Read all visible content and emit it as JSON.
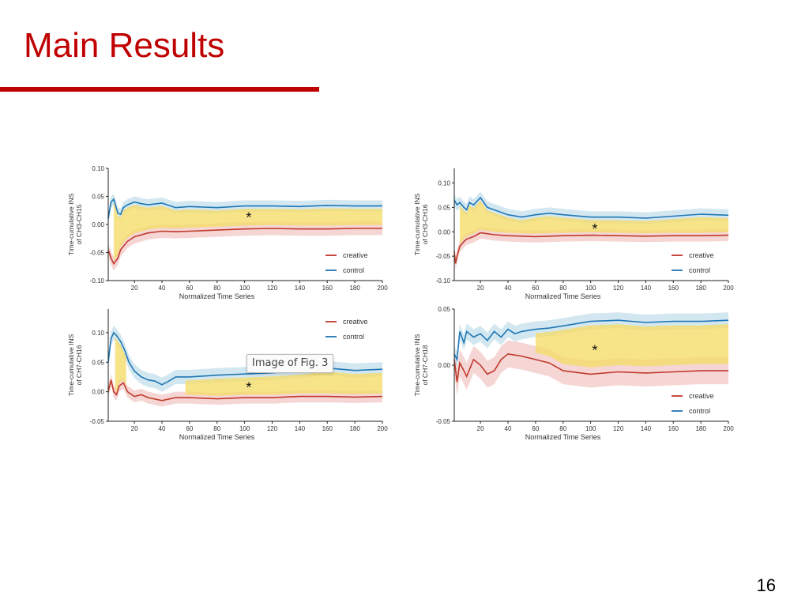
{
  "slide": {
    "title": "Main Results",
    "page_number": "16",
    "tooltip": "Image of Fig. 3",
    "accent_color": "#c00000"
  },
  "colors": {
    "creative": "#c0392b",
    "creative_band": "#e8a4a0",
    "control": "#1f77b4",
    "control_band": "#9ecae1",
    "significance": "#f5dc6a"
  },
  "chart_data": [
    {
      "type": "line",
      "ylabel": [
        "Time-cumulative INS",
        "of CH3-CH15"
      ],
      "xlabel": "Normalized Time Series",
      "xlim": [
        1,
        200
      ],
      "ylim": [
        -0.1,
        0.1
      ],
      "yticks": [
        0.1,
        0.05,
        0.0,
        -0.05,
        -0.1
      ],
      "yticklabels": [
        "0.10",
        "0.05",
        "0.00",
        "-0.05",
        "-0.10"
      ],
      "xticks": [
        20,
        40,
        60,
        80,
        100,
        120,
        140,
        160,
        180,
        200
      ],
      "xticklabels": [
        "20",
        "40",
        "60",
        "80",
        "100",
        "120",
        "140",
        "160",
        "180",
        "200"
      ],
      "legend_position": "bottom-right",
      "significant_range": [
        5,
        200
      ],
      "star": {
        "label": "*",
        "x": 103,
        "y": 0.012
      },
      "series": [
        {
          "name": "creative",
          "x": [
            1,
            3,
            5,
            8,
            10,
            15,
            20,
            30,
            40,
            50,
            60,
            80,
            100,
            120,
            140,
            160,
            180,
            200
          ],
          "values": [
            -0.045,
            -0.06,
            -0.07,
            -0.06,
            -0.045,
            -0.03,
            -0.022,
            -0.015,
            -0.012,
            -0.013,
            -0.012,
            -0.01,
            -0.008,
            -0.007,
            -0.008,
            -0.008,
            -0.007,
            -0.007
          ],
          "band": 0.012
        },
        {
          "name": "control",
          "x": [
            1,
            3,
            5,
            8,
            10,
            12,
            15,
            20,
            25,
            30,
            40,
            50,
            60,
            80,
            100,
            120,
            140,
            160,
            180,
            200
          ],
          "values": [
            0.01,
            0.04,
            0.045,
            0.02,
            0.018,
            0.03,
            0.035,
            0.04,
            0.037,
            0.035,
            0.038,
            0.03,
            0.032,
            0.03,
            0.033,
            0.033,
            0.032,
            0.034,
            0.033,
            0.033
          ],
          "band": 0.01
        }
      ]
    },
    {
      "type": "line",
      "ylabel": [
        "Time-cumulative INS",
        "of CH3-CH16"
      ],
      "xlabel": "Normalized Time Series",
      "xlim": [
        1,
        200
      ],
      "ylim": [
        -0.1,
        0.13
      ],
      "yticks": [
        0.1,
        0.05,
        0.0,
        -0.05,
        -0.1
      ],
      "yticklabels": [
        "0.10",
        "0.05",
        "0.00",
        "-0.05",
        "-0.10"
      ],
      "xticks": [
        20,
        40,
        60,
        80,
        100,
        120,
        140,
        160,
        180,
        200
      ],
      "xticklabels": [
        "20",
        "40",
        "60",
        "80",
        "100",
        "120",
        "140",
        "160",
        "180",
        "200"
      ],
      "legend_position": "bottom-right",
      "significant_range": [
        5,
        200
      ],
      "star": {
        "label": "*",
        "x": 103,
        "y": 0.005
      },
      "series": [
        {
          "name": "creative",
          "x": [
            1,
            2,
            3,
            5,
            8,
            10,
            15,
            20,
            25,
            30,
            40,
            60,
            80,
            100,
            120,
            140,
            160,
            180,
            200
          ],
          "values": [
            -0.04,
            -0.065,
            -0.05,
            -0.03,
            -0.02,
            -0.015,
            -0.01,
            -0.002,
            -0.004,
            -0.006,
            -0.008,
            -0.01,
            -0.008,
            -0.007,
            -0.008,
            -0.009,
            -0.008,
            -0.008,
            -0.007
          ],
          "band": 0.012
        },
        {
          "name": "control",
          "x": [
            1,
            3,
            5,
            8,
            10,
            12,
            15,
            20,
            25,
            30,
            40,
            50,
            60,
            70,
            80,
            100,
            120,
            140,
            160,
            180,
            200
          ],
          "values": [
            0.065,
            0.055,
            0.06,
            0.05,
            0.045,
            0.06,
            0.055,
            0.07,
            0.05,
            0.045,
            0.035,
            0.03,
            0.035,
            0.038,
            0.035,
            0.03,
            0.03,
            0.028,
            0.032,
            0.036,
            0.034
          ],
          "band": 0.012
        }
      ]
    },
    {
      "type": "line",
      "ylabel": [
        "Time-cumulative INS",
        "of CH7-CH16"
      ],
      "xlabel": "Normalized Time Series",
      "xlim": [
        1,
        200
      ],
      "ylim": [
        -0.05,
        0.14
      ],
      "yticks": [
        0.1,
        0.05,
        0.0,
        -0.05
      ],
      "yticklabels": [
        "0.10",
        "0.05",
        "0.00",
        "-0.05"
      ],
      "xticks": [
        20,
        40,
        60,
        80,
        100,
        120,
        140,
        160,
        180,
        200
      ],
      "xticklabels": [
        "20",
        "40",
        "60",
        "80",
        "100",
        "120",
        "140",
        "160",
        "180",
        "200"
      ],
      "legend_position": "top-right",
      "significant_range": [
        57,
        200
      ],
      "early_significant_range": [
        6,
        14
      ],
      "star": {
        "label": "*",
        "x": 103,
        "y": 0.007
      },
      "series": [
        {
          "name": "creative",
          "x": [
            1,
            3,
            5,
            7,
            9,
            12,
            15,
            20,
            25,
            30,
            40,
            50,
            60,
            80,
            100,
            120,
            140,
            160,
            180,
            200
          ],
          "values": [
            0.0,
            0.02,
            0.0,
            -0.005,
            0.01,
            0.015,
            0.0,
            -0.008,
            -0.005,
            -0.01,
            -0.015,
            -0.01,
            -0.01,
            -0.012,
            -0.01,
            -0.01,
            -0.008,
            -0.008,
            -0.009,
            -0.008
          ],
          "band": 0.01
        },
        {
          "name": "control",
          "x": [
            1,
            3,
            5,
            7,
            10,
            13,
            16,
            20,
            25,
            30,
            35,
            40,
            45,
            50,
            60,
            80,
            100,
            120,
            140,
            160,
            180,
            200
          ],
          "values": [
            0.05,
            0.09,
            0.1,
            0.095,
            0.085,
            0.07,
            0.05,
            0.035,
            0.025,
            0.02,
            0.018,
            0.012,
            0.018,
            0.025,
            0.025,
            0.028,
            0.03,
            0.032,
            0.035,
            0.04,
            0.036,
            0.038
          ],
          "band": 0.012
        }
      ]
    },
    {
      "type": "line",
      "ylabel": [
        "Time-cumulative INS",
        "of CH7-CH18"
      ],
      "xlabel": "Normalized Time Series",
      "xlim": [
        1,
        200
      ],
      "ylim": [
        -0.05,
        0.05
      ],
      "yticks": [
        0.05,
        0.0,
        -0.05
      ],
      "yticklabels": [
        "0.05",
        "0.00",
        "-0.05"
      ],
      "xticks": [
        20,
        40,
        60,
        80,
        100,
        120,
        140,
        160,
        180,
        200
      ],
      "xticklabels": [
        "20",
        "40",
        "60",
        "80",
        "100",
        "120",
        "140",
        "160",
        "180",
        "200"
      ],
      "legend_position": "bottom-right",
      "significant_range": [
        60,
        200
      ],
      "star": {
        "label": "*",
        "x": 103,
        "y": 0.013
      },
      "series": [
        {
          "name": "creative",
          "x": [
            1,
            3,
            5,
            8,
            10,
            15,
            20,
            25,
            30,
            35,
            40,
            50,
            60,
            70,
            80,
            100,
            120,
            140,
            160,
            180,
            200
          ],
          "values": [
            0.005,
            -0.015,
            0.002,
            -0.005,
            -0.01,
            0.005,
            0.0,
            -0.008,
            -0.005,
            0.005,
            0.01,
            0.008,
            0.005,
            0.002,
            -0.005,
            -0.008,
            -0.006,
            -0.007,
            -0.006,
            -0.005,
            -0.005
          ],
          "band": 0.012
        },
        {
          "name": "control",
          "x": [
            1,
            3,
            5,
            8,
            10,
            15,
            20,
            25,
            30,
            35,
            40,
            45,
            50,
            60,
            70,
            80,
            100,
            120,
            140,
            160,
            180,
            200
          ],
          "values": [
            0.01,
            0.005,
            0.03,
            0.02,
            0.03,
            0.025,
            0.028,
            0.022,
            0.03,
            0.025,
            0.032,
            0.028,
            0.03,
            0.032,
            0.033,
            0.035,
            0.039,
            0.04,
            0.038,
            0.039,
            0.039,
            0.04
          ],
          "band": 0.007
        }
      ]
    }
  ]
}
